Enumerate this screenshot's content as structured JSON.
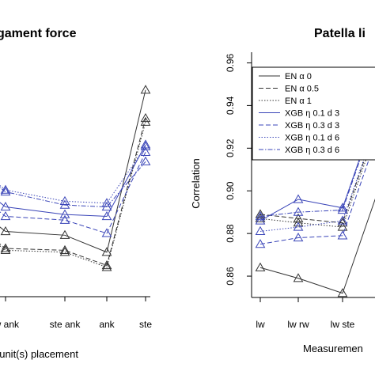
{
  "chart_data": [
    {
      "type": "line",
      "title": "gament force",
      "xlabel": "t unit(s) placement",
      "ylabel": "",
      "categories": [
        "lw ank",
        "ste ank",
        "ank",
        "ste"
      ],
      "ylim": [
        0.835,
        0.965
      ],
      "series": [
        {
          "style": "EN a0",
          "values": [
            0.87,
            0.868,
            0.859,
            0.945
          ]
        },
        {
          "style": "EN a0.5",
          "values": [
            0.861,
            0.86,
            0.852,
            0.93
          ]
        },
        {
          "style": "EN a1",
          "values": [
            0.86,
            0.859,
            0.851,
            0.928
          ]
        },
        {
          "style": "XGB 0.1 d3",
          "values": [
            0.883,
            0.879,
            0.878,
            0.916
          ]
        },
        {
          "style": "XGB 0.3 d3",
          "values": [
            0.878,
            0.876,
            0.869,
            0.912
          ]
        },
        {
          "style": "XGB 0.1 d6",
          "values": [
            0.892,
            0.886,
            0.885,
            0.915
          ]
        },
        {
          "style": "XGB 0.3 d6",
          "values": [
            0.891,
            0.884,
            0.883,
            0.907
          ]
        }
      ]
    },
    {
      "type": "line",
      "title": "Patella li",
      "xlabel": "Measuremen",
      "ylabel": "Correlation",
      "categories": [
        "lw",
        "lw rw",
        "lw ste"
      ],
      "yticks": [
        "0.86",
        "0.88",
        "0.90",
        "0.92",
        "0.94",
        "0.96"
      ],
      "ylim": [
        0.85,
        0.965
      ],
      "legend": {
        "placement": "top-left",
        "entries": [
          "EN α 0",
          "EN α 0.5",
          "EN α 1",
          "XGB η 0.1 d 3",
          "XGB η 0.3 d 3",
          "XGB η 0.1 d 6",
          "XGB η 0.3 d 6"
        ]
      },
      "series": [
        {
          "style": "EN a0",
          "values": [
            0.864,
            0.859,
            0.852
          ]
        },
        {
          "style": "EN a0.5",
          "values": [
            0.889,
            0.887,
            0.885
          ]
        },
        {
          "style": "EN a1",
          "values": [
            0.887,
            0.885,
            0.883
          ]
        },
        {
          "style": "XGB 0.1 d3",
          "values": [
            0.886,
            0.896,
            0.892
          ]
        },
        {
          "style": "XGB 0.3 d3",
          "values": [
            0.875,
            0.878,
            0.879
          ]
        },
        {
          "style": "XGB 0.1 d6",
          "values": [
            0.881,
            0.883,
            0.886
          ]
        },
        {
          "style": "XGB 0.3 d6",
          "values": [
            0.888,
            0.89,
            0.891
          ]
        }
      ]
    }
  ]
}
